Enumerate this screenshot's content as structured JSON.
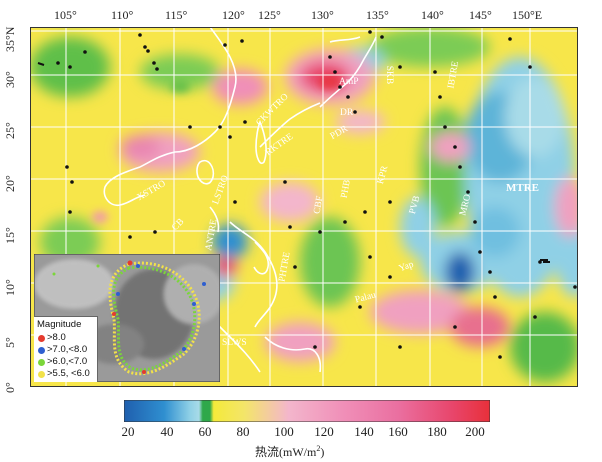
{
  "lon_ticks": [
    "105°",
    "110°",
    "115°",
    "120°",
    "125°",
    "130°",
    "135°",
    "140°",
    "145°",
    "150°E"
  ],
  "lat_ticks": [
    "35°N",
    "30°",
    "25°",
    "20°",
    "15°",
    "10°",
    "5°",
    "0°"
  ],
  "region_labels": [
    "AmP",
    "SKB",
    "IBTRE",
    "CKWTRO",
    "DR",
    "RKTRE",
    "PDR",
    "XSTRO",
    "LSTRO",
    "CB",
    "ANTRE",
    "PHB",
    "CBF",
    "KPR",
    "PVB",
    "MRO",
    "MTRE",
    "PHTRE",
    "Yap",
    "Palau",
    "SLWS"
  ],
  "colorbar": {
    "ticks": [
      "20",
      "40",
      "60",
      "80",
      "100",
      "120",
      "140",
      "160",
      "180",
      "200"
    ],
    "unit_prefix": "热流(mW/m",
    "unit_sup": "2",
    "unit_suffix": ")"
  },
  "legend": {
    "title": "Magnitude",
    "items": [
      {
        "label": ">8.0",
        "color": "#e53b2e"
      },
      {
        "label": ">7.0,<8.0",
        "color": "#2f5fd0"
      },
      {
        "label": ">6.0,<7.0",
        "color": "#7bd63a"
      },
      {
        "label": ">5.5, <6.0",
        "color": "#f2e24a"
      }
    ]
  },
  "colors": {
    "low": "#1f5fae",
    "cyan": "#8fd0e6",
    "green": "#2fa84a",
    "yellow": "#f5ea3a",
    "pink": "#f0a0c0",
    "red": "#e8303a",
    "grid": "#ffffff"
  }
}
